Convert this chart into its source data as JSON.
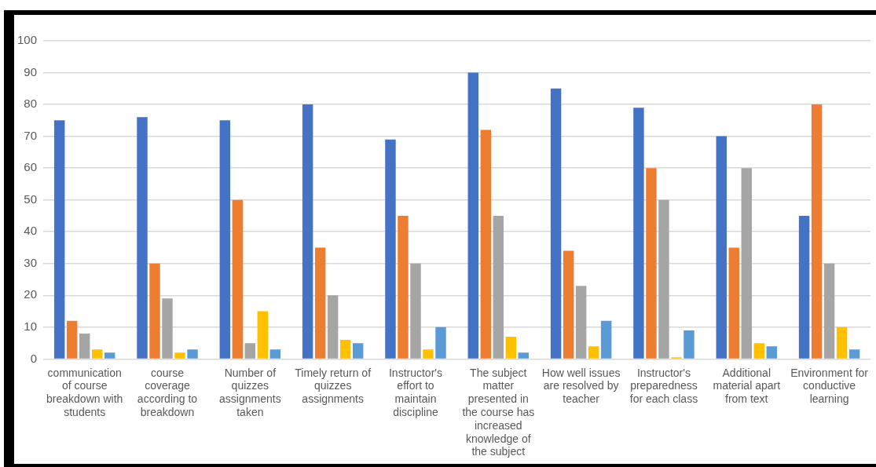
{
  "chart_data": {
    "type": "bar",
    "categories": [
      "communication of course breakdown with students",
      "course coverage according to breakdown",
      "Number of quizzes assignments taken",
      "Timely return of quizzes assignments",
      "Instructor's effort to maintain discipline",
      "The subject matter presented in the course has increased knowledge of the subject",
      "How well issues are resolved by teacher",
      "Instructor's preparedness for each class",
      "Additional material apart from text",
      "Environment for conductive learning"
    ],
    "series": [
      {
        "color": "#4472c4",
        "values": [
          75,
          76,
          75,
          80,
          69,
          90,
          85,
          79,
          70,
          45
        ]
      },
      {
        "color": "#ed7d31",
        "values": [
          12,
          30,
          50,
          35,
          45,
          72,
          34,
          60,
          35,
          80
        ]
      },
      {
        "color": "#a5a5a5",
        "values": [
          8,
          19,
          5,
          20,
          30,
          45,
          23,
          50,
          60,
          30
        ]
      },
      {
        "color": "#ffc000",
        "values": [
          3,
          2,
          15,
          6,
          3,
          7,
          4,
          0.5,
          5,
          10
        ]
      },
      {
        "color": "#5b9bd5",
        "values": [
          2,
          3,
          3,
          5,
          10,
          2,
          12,
          9,
          4,
          3
        ]
      }
    ],
    "ylim": [
      0,
      100
    ],
    "yticks": [
      0,
      10,
      20,
      30,
      40,
      50,
      60,
      70,
      80,
      90,
      100
    ],
    "grid": "y",
    "legend": false
  }
}
